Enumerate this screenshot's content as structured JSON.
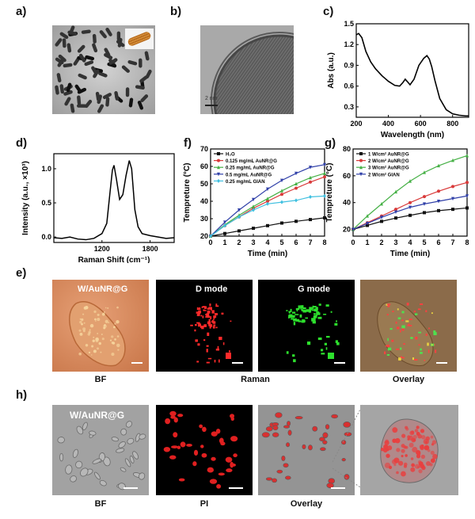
{
  "panel_labels": {
    "a": "a)",
    "b": "b)",
    "c": "c)",
    "d": "d)",
    "e": "e)",
    "f": "f)",
    "g": "g)",
    "h": "h)"
  },
  "panel_b": {
    "scale_text": "2 nm"
  },
  "panel_e": {
    "bf_title": "W/AuNR@G",
    "d_mode": "D mode",
    "g_mode": "G mode",
    "cap_bf": "BF",
    "cap_raman": "Raman",
    "cap_overlay": "Overlay"
  },
  "panel_h": {
    "bf_title": "W/AuNR@G",
    "cap_bf": "BF",
    "cap_pi": "PI",
    "cap_overlay": "Overlay"
  },
  "chart_data": [
    {
      "id": "c",
      "type": "line",
      "xlabel": "Wavelength (nm)",
      "ylabel": "Abs (a.u.)",
      "xlim": [
        200,
        900
      ],
      "ylim": [
        0.15,
        1.5
      ],
      "xticks": [
        200,
        400,
        600,
        800
      ],
      "yticks": [
        0.3,
        0.6,
        0.9,
        1.2,
        1.5
      ],
      "series": [
        {
          "color": "#000000",
          "x": [
            200,
            215,
            235,
            260,
            290,
            320,
            360,
            400,
            440,
            470,
            490,
            505,
            520,
            535,
            560,
            590,
            620,
            640,
            655,
            670,
            690,
            720,
            760,
            800,
            840,
            880,
            900
          ],
          "y": [
            1.34,
            1.36,
            1.3,
            1.1,
            0.95,
            0.85,
            0.75,
            0.67,
            0.61,
            0.6,
            0.65,
            0.7,
            0.66,
            0.62,
            0.7,
            0.9,
            1.0,
            1.04,
            0.99,
            0.88,
            0.68,
            0.42,
            0.26,
            0.2,
            0.18,
            0.17,
            0.17
          ]
        }
      ]
    },
    {
      "id": "d",
      "type": "line",
      "xlabel": "Raman Shift (cm⁻¹)",
      "ylabel": "Intensity (a.u., ×10³)",
      "xlim": [
        600,
        2100
      ],
      "ylim": [
        -0.08,
        1.22
      ],
      "xticks": [
        1200,
        1800
      ],
      "yticks": [
        0.0,
        0.5,
        1.0
      ],
      "series": [
        {
          "color": "#000000",
          "x": [
            600,
            700,
            800,
            900,
            1000,
            1100,
            1200,
            1260,
            1300,
            1330,
            1350,
            1380,
            1420,
            1460,
            1500,
            1540,
            1570,
            1590,
            1610,
            1650,
            1700,
            1800,
            1900,
            2000,
            2100
          ],
          "y": [
            -0.01,
            -0.02,
            0.0,
            -0.03,
            -0.04,
            -0.02,
            0.05,
            0.2,
            0.65,
            0.98,
            1.05,
            0.85,
            0.55,
            0.62,
            0.9,
            1.12,
            1.0,
            0.7,
            0.4,
            0.15,
            0.05,
            0.02,
            0.0,
            -0.02,
            -0.01
          ]
        }
      ]
    },
    {
      "id": "f",
      "type": "line",
      "xlabel": "Time (min)",
      "ylabel": "Tempreture (°C)",
      "xlim": [
        0,
        8
      ],
      "ylim": [
        20,
        70
      ],
      "xticks": [
        0,
        1,
        2,
        3,
        4,
        5,
        6,
        7,
        8
      ],
      "yticks": [
        20,
        30,
        40,
        50,
        60,
        70
      ],
      "series": [
        {
          "name": "H₂O",
          "color": "#111111",
          "marker": "square",
          "x": [
            0,
            1,
            2,
            3,
            4,
            5,
            6,
            7,
            8
          ],
          "y": [
            20,
            21.5,
            23,
            24.5,
            26,
            27.5,
            28.5,
            29.5,
            30.5
          ]
        },
        {
          "name": "0.125 mg/mL  AuNR@G",
          "color": "#d93a3a",
          "marker": "circle",
          "x": [
            0,
            1,
            2,
            3,
            4,
            5,
            6,
            7,
            8
          ],
          "y": [
            20,
            26,
            31,
            36,
            40,
            44,
            47.5,
            51,
            54
          ]
        },
        {
          "name": "0.25 mg/mL AuNR@G",
          "color": "#45b045",
          "marker": "triangle",
          "x": [
            0,
            1,
            2,
            3,
            4,
            5,
            6,
            7,
            8
          ],
          "y": [
            20,
            26.5,
            32,
            37,
            41.5,
            46,
            50,
            53.5,
            56
          ]
        },
        {
          "name": "0.5 mg/mL AuNR@G",
          "color": "#2f3fa8",
          "marker": "triangle-down",
          "x": [
            0,
            1,
            2,
            3,
            4,
            5,
            6,
            7,
            8
          ],
          "y": [
            20,
            28,
            35,
            41,
            47,
            52,
            56,
            59.5,
            61
          ]
        },
        {
          "name": "0.25 mg/mL GIAN",
          "color": "#40c0e0",
          "marker": "diamond",
          "x": [
            0,
            1,
            2,
            3,
            4,
            5,
            6,
            7,
            8
          ],
          "y": [
            20,
            26,
            31,
            35,
            38.5,
            39.5,
            40.5,
            42.5,
            43
          ]
        }
      ]
    },
    {
      "id": "g",
      "type": "line",
      "xlabel": "Time (min)",
      "ylabel": "Tempreture (°C)",
      "xlim": [
        0,
        8
      ],
      "ylim": [
        15,
        80
      ],
      "xticks": [
        0,
        1,
        2,
        3,
        4,
        5,
        6,
        7,
        8
      ],
      "yticks": [
        20,
        40,
        60,
        80
      ],
      "series": [
        {
          "name": "1 W/cm² AuNR@G",
          "color": "#111111",
          "marker": "square",
          "x": [
            0,
            1,
            2,
            3,
            4,
            5,
            6,
            7,
            8
          ],
          "y": [
            20,
            23,
            26,
            28.5,
            30.5,
            32.5,
            34,
            35,
            36
          ]
        },
        {
          "name": "2 W/cm² AuNR@G",
          "color": "#d93a3a",
          "marker": "circle",
          "x": [
            0,
            1,
            2,
            3,
            4,
            5,
            6,
            7,
            8
          ],
          "y": [
            20,
            25,
            30,
            35,
            40,
            44.5,
            48.5,
            52,
            55
          ]
        },
        {
          "name": "3 W/cm² AuNR@G",
          "color": "#45b045",
          "marker": "triangle",
          "x": [
            0,
            1,
            2,
            3,
            4,
            5,
            6,
            7,
            8
          ],
          "y": [
            20,
            30,
            39,
            48,
            56,
            62.5,
            67.5,
            71.5,
            75
          ]
        },
        {
          "name": "2 W/cm² GIAN",
          "color": "#2f3fa8",
          "marker": "triangle-down",
          "x": [
            0,
            1,
            2,
            3,
            4,
            5,
            6,
            7,
            8
          ],
          "y": [
            20,
            24.5,
            29,
            33,
            36.5,
            39,
            41,
            43,
            45
          ]
        }
      ]
    }
  ]
}
